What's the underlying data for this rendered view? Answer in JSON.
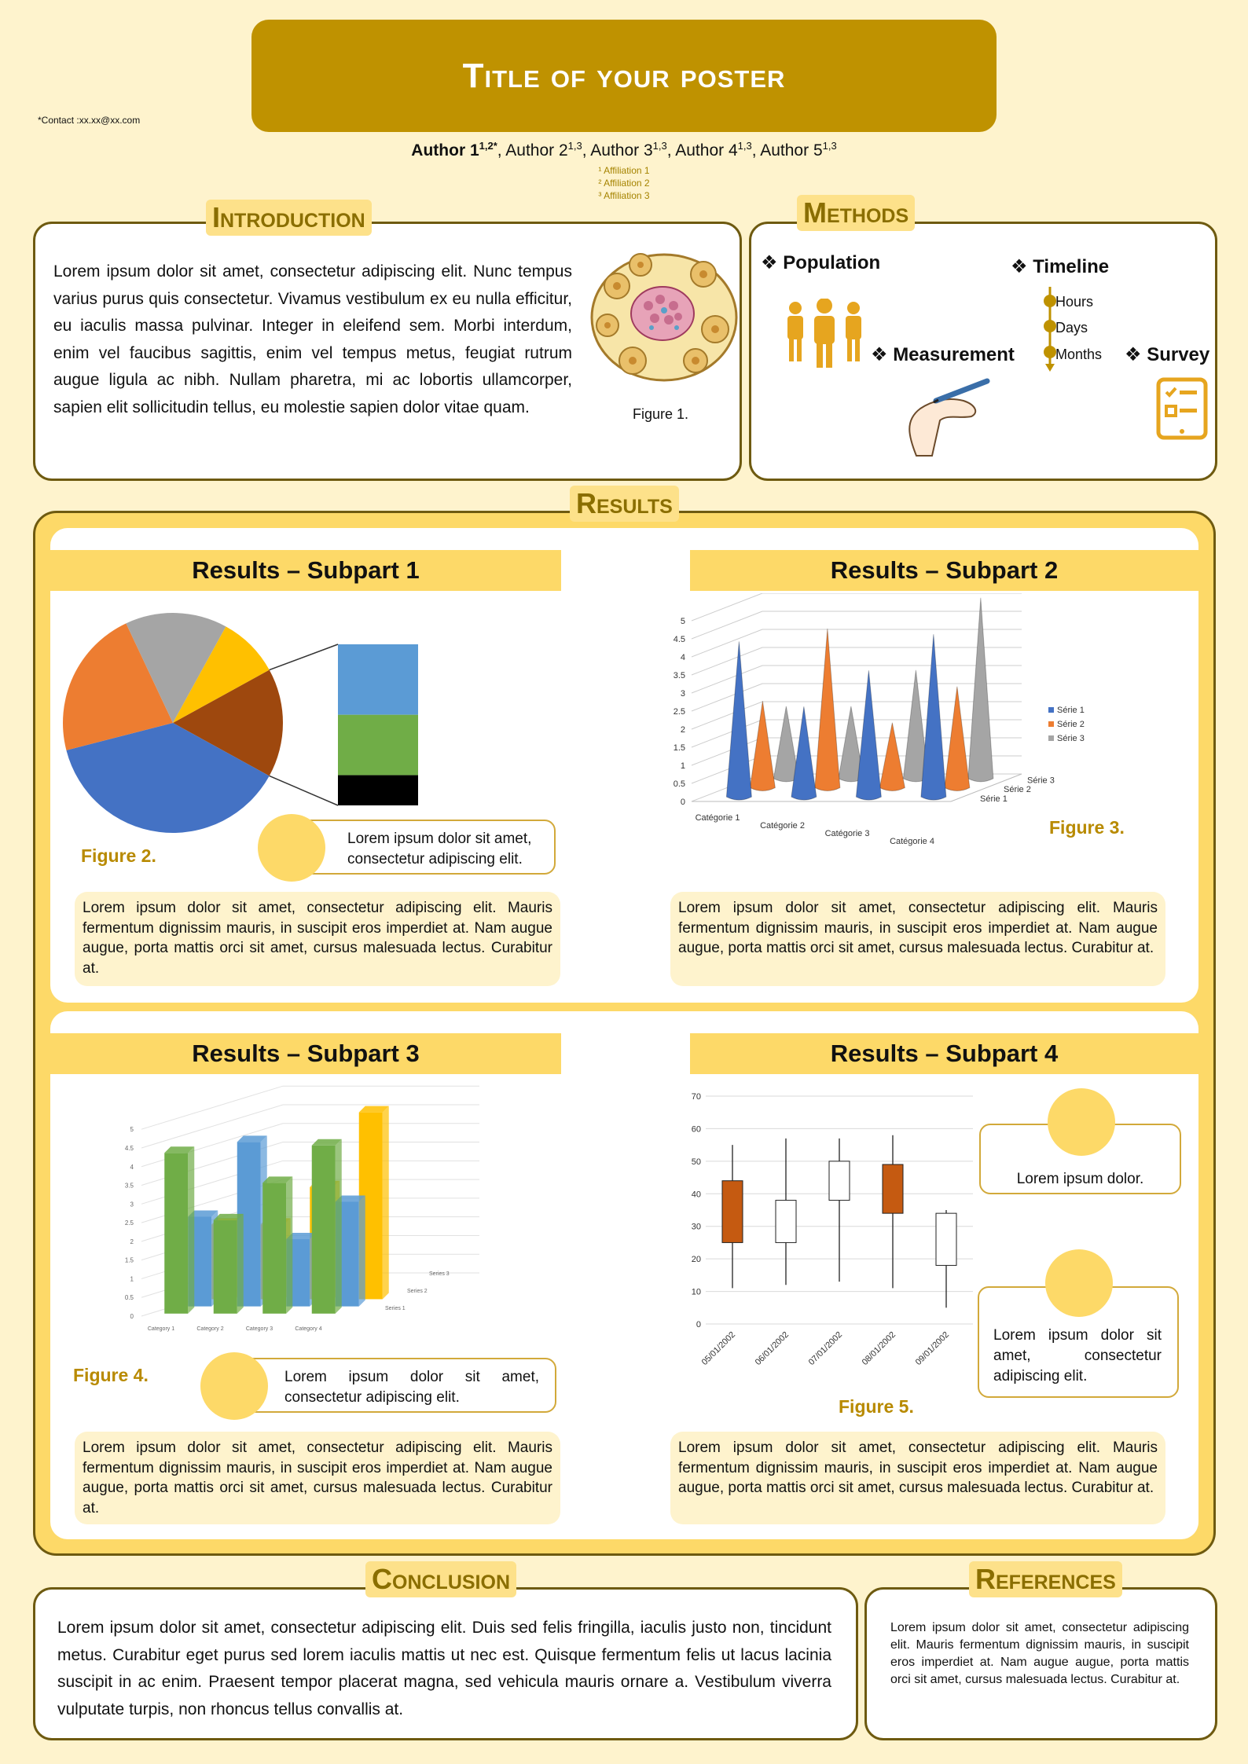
{
  "header": {
    "title": "Title of your poster",
    "contact": "*Contact :xx.xx@xx.com",
    "authors": [
      {
        "name": "Author 1",
        "sup": "1,2*",
        "bold": true
      },
      {
        "name": "Author 2",
        "sup": "1,3",
        "bold": false
      },
      {
        "name": "Author 3",
        "sup": "1,3",
        "bold": false
      },
      {
        "name": "Author 4",
        "sup": "1,3",
        "bold": false
      },
      {
        "name": "Author 5",
        "sup": "1,3",
        "bold": false
      }
    ],
    "affiliations": [
      "¹ Affiliation 1",
      "² Affiliation 2",
      "³ Affiliation 3"
    ]
  },
  "introduction": {
    "title": "Introduction",
    "text": "Lorem ipsum dolor sit amet, consectetur adipiscing elit. Nunc tempus varius purus quis consectetur. Vivamus vestibulum ex eu nulla efficitur, eu iaculis massa pulvinar. Integer in eleifend sem. Morbi interdum, enim vel faucibus sagittis, enim vel tempus metus, feugiat rutrum augue ligula ac nibh. Nullam pharetra, mi ac lobortis ullamcorper, sapien elit sollicitudin tellus, eu molestie sapien dolor vitae quam.",
    "figure_caption": "Figure 1."
  },
  "methods": {
    "title": "Methods",
    "population": "Population",
    "timeline": "Timeline",
    "timeline_items": [
      "Hours",
      "Days",
      "Months"
    ],
    "measurement": "Measurement",
    "survey": "Survey",
    "bullet": "❖",
    "icons": [
      "people-icon",
      "hand-pen-icon",
      "tablet-survey-icon"
    ]
  },
  "results": {
    "title": "Results",
    "sub1": {
      "heading": "Results – Subpart 1",
      "figure": "Figure 2.",
      "callout": "Lorem ipsum dolor sit amet, consectetur adipiscing elit.",
      "para": "Lorem ipsum dolor sit amet, consectetur adipiscing elit. Mauris fermentum dignissim mauris, in suscipit eros imperdiet at. Nam augue augue, porta mattis orci sit amet, cursus malesuada lectus. Curabitur at."
    },
    "sub2": {
      "heading": "Results – Subpart 2",
      "figure": "Figure 3.",
      "para": "Lorem ipsum dolor sit amet, consectetur adipiscing elit. Mauris fermentum dignissim mauris, in suscipit eros imperdiet at. Nam augue augue, porta mattis orci sit amet, cursus malesuada lectus. Curabitur at."
    },
    "sub3": {
      "heading": "Results – Subpart 3",
      "figure": "Figure 4.",
      "callout": "Lorem ipsum dolor sit amet, consectetur adipiscing elit.",
      "para": "Lorem ipsum dolor sit amet, consectetur adipiscing elit. Mauris fermentum dignissim mauris, in suscipit eros imperdiet at. Nam augue augue, porta mattis orci sit amet, cursus malesuada lectus. Curabitur at."
    },
    "sub4": {
      "heading": "Results – Subpart 4",
      "figure": "Figure 5.",
      "callout1": "Lorem ipsum dolor.",
      "callout2": "Lorem ipsum dolor sit amet, consectetur adipiscing elit.",
      "para": "Lorem ipsum dolor sit amet, consectetur adipiscing elit. Mauris fermentum dignissim mauris, in suscipit eros imperdiet at. Nam augue augue, porta mattis orci sit amet, cursus malesuada lectus. Curabitur at."
    }
  },
  "conclusion": {
    "title": "Conclusion",
    "text": "Lorem ipsum dolor sit amet, consectetur adipiscing elit. Duis sed felis fringilla, iaculis justo non, tincidunt metus. Curabitur eget purus sed lorem iaculis mattis ut nec est. Quisque fermentum felis ut lacus lacinia suscipit in ac enim. Praesent tempor placerat magna, sed vehicula mauris ornare a. Vestibulum viverra vulputate turpis, non rhoncus tellus convallis at."
  },
  "references": {
    "title": "References",
    "text": "Lorem ipsum dolor sit amet, consectetur adipiscing elit. Mauris fermentum dignissim mauris, in suscipit eros imperdiet at. Nam augue augue, porta mattis orci sit amet, cursus malesuada lectus. Curabitur at."
  },
  "colors": {
    "gold": "#bf9200",
    "light": "#fef3cd",
    "accent": "#fdd968",
    "border": "#6e5a10",
    "caption": "#b88a00"
  },
  "chart_data": [
    {
      "type": "pie",
      "values": [
        38,
        22,
        15,
        9,
        7,
        6,
        3
      ],
      "colors": [
        "#4472c4",
        "#ed7d31",
        "#a5a5a5",
        "#ffc000",
        "#9e480e",
        "#5b9bd5",
        "#70ad47"
      ],
      "breakout_from": 4
    },
    {
      "type": "bar",
      "style": "3d-cone",
      "categories": [
        "Catégorie 1",
        "Catégorie 2",
        "Catégorie 3",
        "Catégorie 4"
      ],
      "series": [
        {
          "name": "Série 1",
          "values": [
            4.3,
            2.5,
            3.5,
            4.5
          ],
          "color": "#4472c4"
        },
        {
          "name": "Série 2",
          "values": [
            2.4,
            4.4,
            1.8,
            2.8
          ],
          "color": "#ed7d31"
        },
        {
          "name": "Série 3",
          "values": [
            2.0,
            2.0,
            3.0,
            5.0
          ],
          "color": "#a5a5a5"
        }
      ],
      "yticks": [
        "0",
        "0.5",
        "1",
        "1.5",
        "2",
        "2.5",
        "3",
        "3.5",
        "4",
        "4.5",
        "5"
      ],
      "depth_labels": [
        "Série 3",
        "Série 2",
        "Série 1"
      ],
      "legend": "right"
    },
    {
      "type": "bar",
      "style": "3d-column",
      "categories": [
        "Category 1",
        "Category 2",
        "Category 3",
        "Category 4"
      ],
      "series": [
        {
          "name": "Series 1",
          "values": [
            4.3,
            2.5,
            3.5,
            4.5
          ],
          "color": "#70ad47"
        },
        {
          "name": "Series 2",
          "values": [
            2.4,
            4.4,
            1.8,
            2.8
          ],
          "color": "#5b9bd5"
        },
        {
          "name": "Series 3",
          "values": [
            2.0,
            2.0,
            3.0,
            5.0
          ],
          "color": "#ffc000"
        }
      ],
      "yticks": [
        "0",
        "0.5",
        "1",
        "1.5",
        "2",
        "2.5",
        "3",
        "3.5",
        "4",
        "4.5",
        "5"
      ],
      "depth_labels": [
        "Series 3",
        "Series 2",
        "Series 1"
      ]
    },
    {
      "type": "candlestick",
      "x": [
        "05/01/2002",
        "06/01/2002",
        "07/01/2002",
        "08/01/2002",
        "09/01/2002"
      ],
      "open": [
        44,
        25,
        38,
        49,
        18
      ],
      "close": [
        25,
        38,
        50,
        34,
        34
      ],
      "high": [
        55,
        57,
        57,
        58,
        35
      ],
      "low": [
        11,
        12,
        13,
        11,
        5
      ],
      "ylim": [
        0,
        70
      ],
      "yticks": [
        "0",
        "10",
        "20",
        "30",
        "40",
        "50",
        "60",
        "70"
      ],
      "up_color": "#ffffff",
      "down_color": "#c55a11"
    }
  ]
}
